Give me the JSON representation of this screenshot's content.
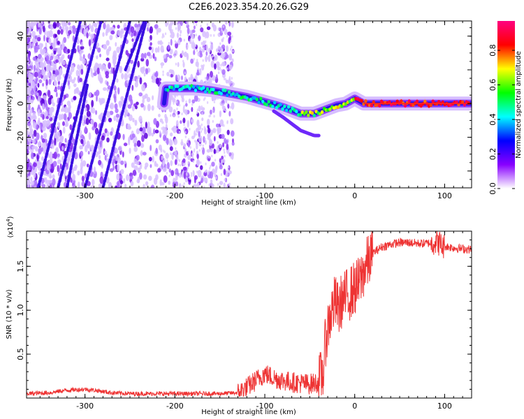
{
  "title": "C2E6.2023.354.20.26.G29",
  "chart_data": [
    {
      "type": "heatmap",
      "xlabel": "Height of straight line (km)",
      "ylabel": "Frequency (Hz)",
      "xlim": [
        -365,
        130
      ],
      "ylim": [
        -50,
        49
      ],
      "x_ticks": [
        -300,
        -200,
        -100,
        0,
        100
      ],
      "y_ticks": [
        -40,
        -20,
        0,
        20,
        40
      ],
      "ridge": [
        {
          "x": -210,
          "y": 9
        },
        {
          "x": -180,
          "y": 9
        },
        {
          "x": -160,
          "y": 8
        },
        {
          "x": -140,
          "y": 6
        },
        {
          "x": -120,
          "y": 4
        },
        {
          "x": -100,
          "y": 1
        },
        {
          "x": -80,
          "y": -2
        },
        {
          "x": -60,
          "y": -6
        },
        {
          "x": -45,
          "y": -6
        },
        {
          "x": -35,
          "y": -4
        },
        {
          "x": -20,
          "y": -1
        },
        {
          "x": -10,
          "y": 0
        },
        {
          "x": 0,
          "y": 3
        },
        {
          "x": 10,
          "y": 0
        },
        {
          "x": 50,
          "y": 0
        },
        {
          "x": 100,
          "y": 0
        },
        {
          "x": 130,
          "y": 0
        }
      ],
      "streaks": [
        {
          "x_start": -352,
          "y_start": -50,
          "x_end": -305,
          "y_end": 49
        },
        {
          "x_start": -330,
          "y_start": -50,
          "x_end": -282,
          "y_end": 49
        },
        {
          "x_start": -320,
          "y_start": -50,
          "x_end": -297,
          "y_end": 12
        },
        {
          "x_start": -300,
          "y_start": -50,
          "x_end": -250,
          "y_end": 49
        },
        {
          "x_start": -280,
          "y_start": -50,
          "x_end": -232,
          "y_end": 49
        },
        {
          "x_start": -255,
          "y_start": 20,
          "x_end": -234,
          "y_end": 49
        }
      ],
      "colorbar": {
        "label": "Normalized spectral amplitude",
        "range": [
          0,
          0.97
        ],
        "ticks": [
          0.0,
          0.2,
          0.4,
          0.6,
          0.8
        ],
        "colors": [
          "#ffffff",
          "#8800ff",
          "#0000ff",
          "#00ffff",
          "#00ff00",
          "#ffff00",
          "#ff0000",
          "#ff0080"
        ]
      }
    },
    {
      "type": "line",
      "xlabel": "Height of straight line (km)",
      "ylabel": "SNR (10 * v/v)",
      "exponent_label": "(x10",
      "exponent_power": "4",
      "exponent_close": ")",
      "xlim": [
        -365,
        130
      ],
      "ylim": [
        0,
        19000
      ],
      "x_ticks": [
        -300,
        -200,
        -100,
        0,
        100
      ],
      "y_ticks": [
        5000,
        10000,
        15000
      ],
      "y_tick_labels": [
        "0.5",
        "1.0",
        "1.5"
      ],
      "color": "#ee3333",
      "series": [
        {
          "x": [
            -365,
            -340,
            -320,
            -300,
            -290,
            -270,
            -250,
            -200,
            -150,
            -130,
            -120,
            -110,
            -100,
            -90,
            -80,
            -70,
            -60,
            -50,
            -40,
            -35,
            -32,
            -28,
            -25,
            -22,
            -20,
            -18,
            -15,
            -10,
            -5,
            0,
            5,
            10,
            15,
            20,
            30,
            40,
            50,
            60,
            70,
            80,
            90,
            95,
            98,
            100,
            110,
            120,
            130
          ],
          "y": [
            500,
            600,
            900,
            1000,
            900,
            600,
            500,
            500,
            500,
            600,
            1200,
            2000,
            2800,
            2300,
            2000,
            1800,
            1700,
            1600,
            1800,
            3000,
            7000,
            9000,
            10000,
            11000,
            10500,
            10000,
            11000,
            11500,
            12000,
            12500,
            13000,
            14500,
            15500,
            16500,
            17200,
            17500,
            17700,
            17700,
            17600,
            17600,
            17800,
            17600,
            17200,
            17300,
            17100,
            17000,
            16900
          ]
        }
      ]
    }
  ]
}
